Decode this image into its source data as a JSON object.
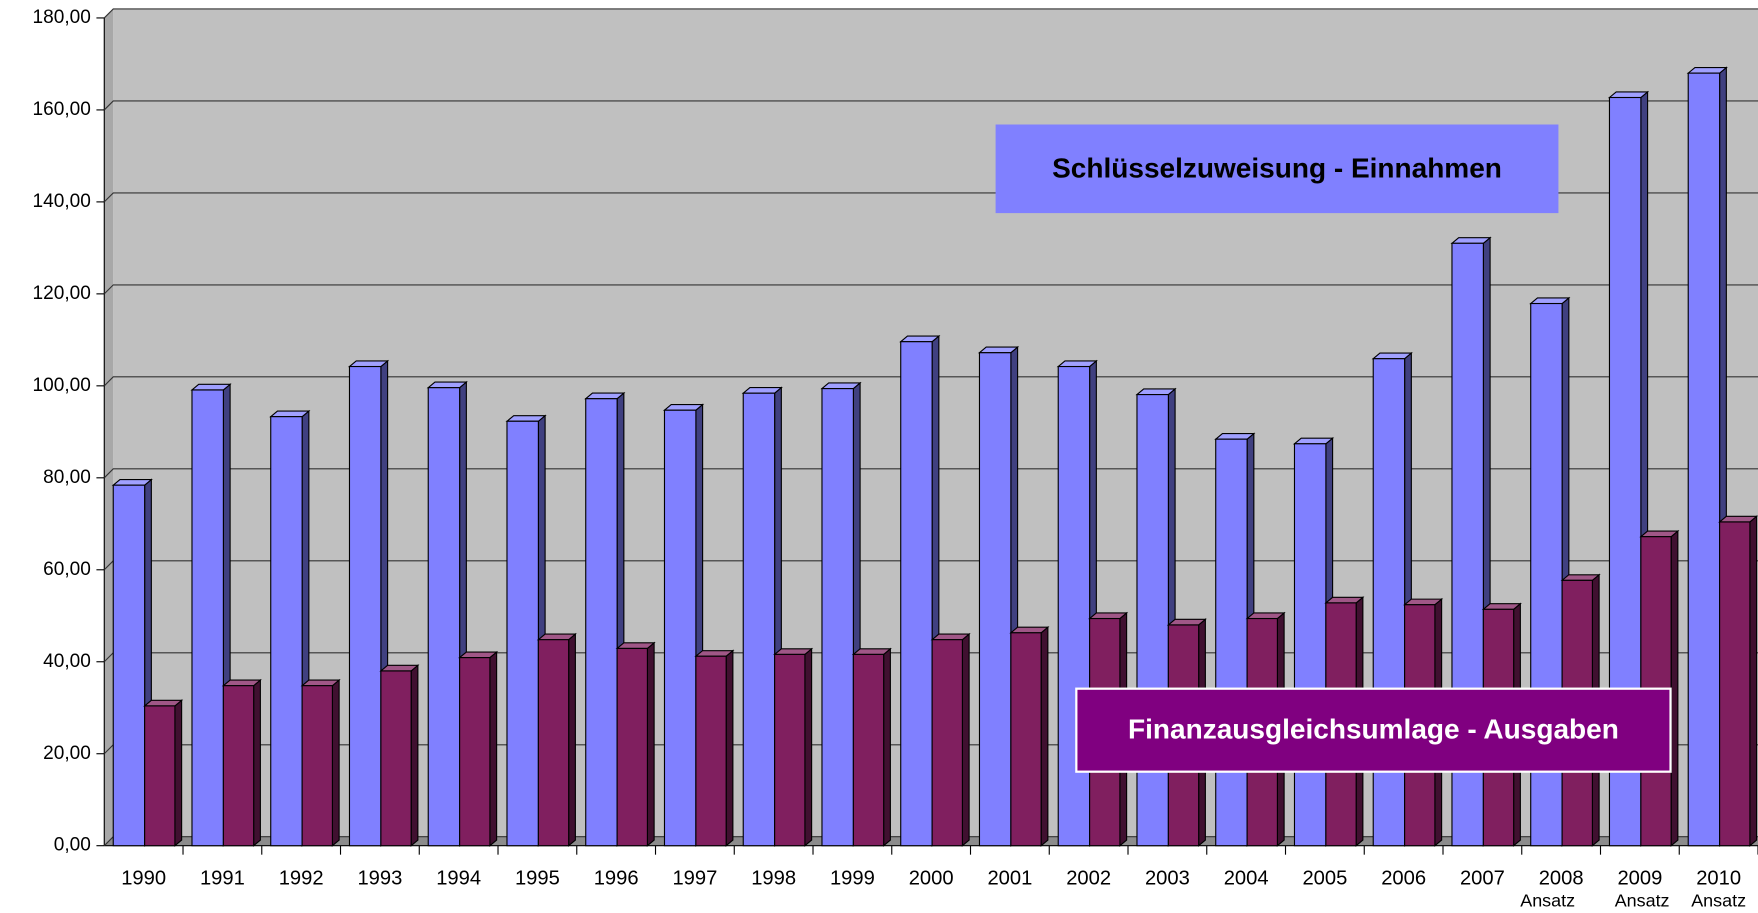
{
  "chart_data": {
    "type": "bar3d",
    "categories": [
      "1990",
      "1991",
      "1992",
      "1993",
      "1994",
      "1995",
      "1996",
      "1997",
      "1998",
      "1999",
      "2000",
      "2001",
      "2002",
      "2003",
      "2004",
      "2005",
      "2006",
      "2007",
      "2008",
      "2009",
      "2010"
    ],
    "category_notes": {
      "18": "Ansatz",
      "19": "Ansatz",
      "20": "Ansatz"
    },
    "series": [
      {
        "name": "Schlüsselzuweisung - Einnahmen",
        "color": "#8080ff",
        "values": [
          78.4,
          99.1,
          93.3,
          104.2,
          99.6,
          92.3,
          97.2,
          94.7,
          98.4,
          99.4,
          109.6,
          107.2,
          104.2,
          98.1,
          88.4,
          87.4,
          105.9,
          131.0,
          117.9,
          162.7,
          168.0
        ]
      },
      {
        "name": "Finanzausgleichsumlage - Ausgaben",
        "color": "#801f5f",
        "values": [
          30.4,
          34.8,
          34.8,
          38.0,
          40.9,
          44.8,
          42.9,
          41.2,
          41.6,
          41.6,
          44.8,
          46.3,
          49.4,
          48.0,
          49.4,
          52.8,
          52.4,
          51.4,
          57.7,
          67.2,
          70.4
        ]
      }
    ],
    "ylim": [
      0,
      180
    ],
    "yticks": [
      {
        "value": 0,
        "label": "0,00"
      },
      {
        "value": 20,
        "label": "20,00"
      },
      {
        "value": 40,
        "label": "40,00"
      },
      {
        "value": 60,
        "label": "60,00"
      },
      {
        "value": 80,
        "label": "80,00"
      },
      {
        "value": 100,
        "label": "100,00"
      },
      {
        "value": 120,
        "label": "120,00"
      },
      {
        "value": 140,
        "label": "140,00"
      },
      {
        "value": 160,
        "label": "160,00"
      },
      {
        "value": 180,
        "label": "180,00"
      }
    ],
    "grid": true
  }
}
